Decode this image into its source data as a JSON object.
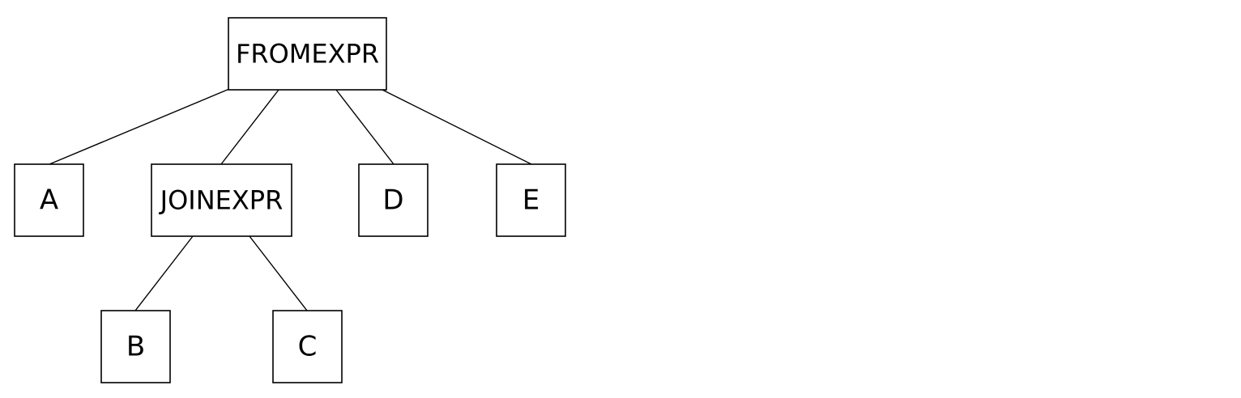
{
  "tree": {
    "nodes": {
      "fromexpr": "FROMEXPR",
      "a": "A",
      "joinexpr": "JOINEXPR",
      "d": "D",
      "e": "E",
      "b": "B",
      "c": "C"
    },
    "edges": [
      [
        "fromexpr",
        "a"
      ],
      [
        "fromexpr",
        "joinexpr"
      ],
      [
        "fromexpr",
        "d"
      ],
      [
        "fromexpr",
        "e"
      ],
      [
        "joinexpr",
        "b"
      ],
      [
        "joinexpr",
        "c"
      ]
    ]
  }
}
